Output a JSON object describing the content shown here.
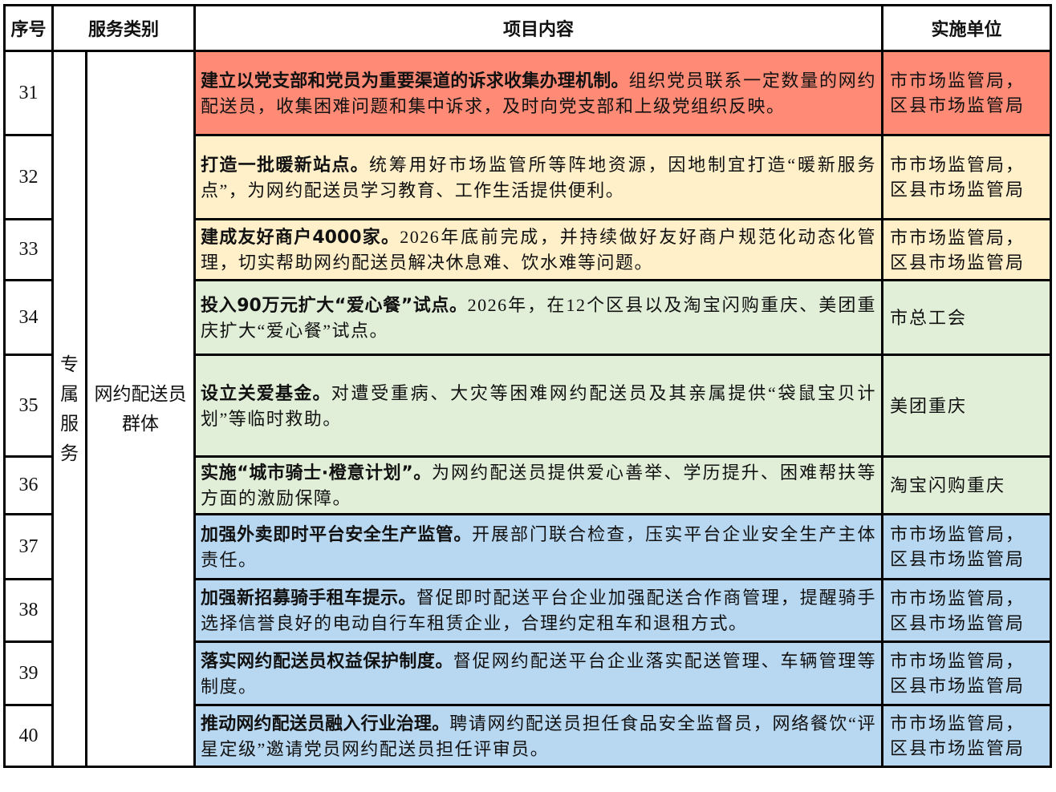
{
  "header": {
    "seq": "序号",
    "category": "服务类别",
    "content": "项目内容",
    "unit": "实施单位"
  },
  "category_level1": "专属服务",
  "category_level2": "网约配送员群体",
  "colors": {
    "red": "#FF8B76",
    "yellow": "#FFF0C9",
    "green": "#E1EED8",
    "blue": "#B8D7F0"
  },
  "rows": [
    {
      "num": "31",
      "title": "建立以党支部和党员为重要渠道的诉求收集办理机制。",
      "body": "组织党员联系一定数量的网约配送员，收集困难问题和集中诉求，及时向党支部和上级党组织反映。",
      "unit": "市市场监管局，区县市场监管局",
      "color": "red"
    },
    {
      "num": "32",
      "title": "打造一批暖新站点。",
      "body": "统筹用好市场监管所等阵地资源，因地制宜打造“暖新服务点”，为网约配送员学习教育、工作生活提供便利。",
      "unit": "市市场监管局，区县市场监管局",
      "color": "yellow"
    },
    {
      "num": "33",
      "title": "建成友好商户4000家。",
      "body": "2026年底前完成，并持续做好友好商户规范化动态化管理，切实帮助网约配送员解决休息难、饮水难等问题。",
      "unit": "市市场监管局，区县市场监管局",
      "color": "yellow"
    },
    {
      "num": "34",
      "title": "投入90万元扩大“爱心餐”试点。",
      "body": "2026年，在12个区县以及淘宝闪购重庆、美团重庆扩大“爱心餐”试点。",
      "unit": "市总工会",
      "color": "green"
    },
    {
      "num": "35",
      "title": "设立关爱基金。",
      "body": "对遭受重病、大灾等困难网约配送员及其亲属提供“袋鼠宝贝计划”等临时救助。",
      "unit": "美团重庆",
      "color": "green"
    },
    {
      "num": "36",
      "title": "实施“城市骑士·橙意计划”。",
      "body": "为网约配送员提供爱心善举、学历提升、困难帮扶等方面的激励保障。",
      "unit": "淘宝闪购重庆",
      "color": "green"
    },
    {
      "num": "37",
      "title": "加强外卖即时平台安全生产监管。",
      "body": "开展部门联合检查，压实平台企业安全生产主体责任。",
      "unit": "市市场监管局，区县市场监管局",
      "color": "blue"
    },
    {
      "num": "38",
      "title": "加强新招募骑手租车提示。",
      "body": "督促即时配送平台企业加强配送合作商管理，提醒骑手选择信誉良好的电动自行车租赁企业，合理约定租车和退租方式。",
      "unit": "市市场监管局，区县市场监管局",
      "color": "blue"
    },
    {
      "num": "39",
      "title": "落实网约配送员权益保护制度。",
      "body": "督促网约配送平台企业落实配送管理、车辆管理等制度。",
      "unit": "市市场监管局，区县市场监管局",
      "color": "blue"
    },
    {
      "num": "40",
      "title": "推动网约配送员融入行业治理。",
      "body": "聘请网约配送员担任食品安全监督员，网络餐饮“评星定级”邀请党员网约配送员担任评审员。",
      "unit": "市市场监管局，区县市场监管局",
      "color": "blue"
    }
  ]
}
